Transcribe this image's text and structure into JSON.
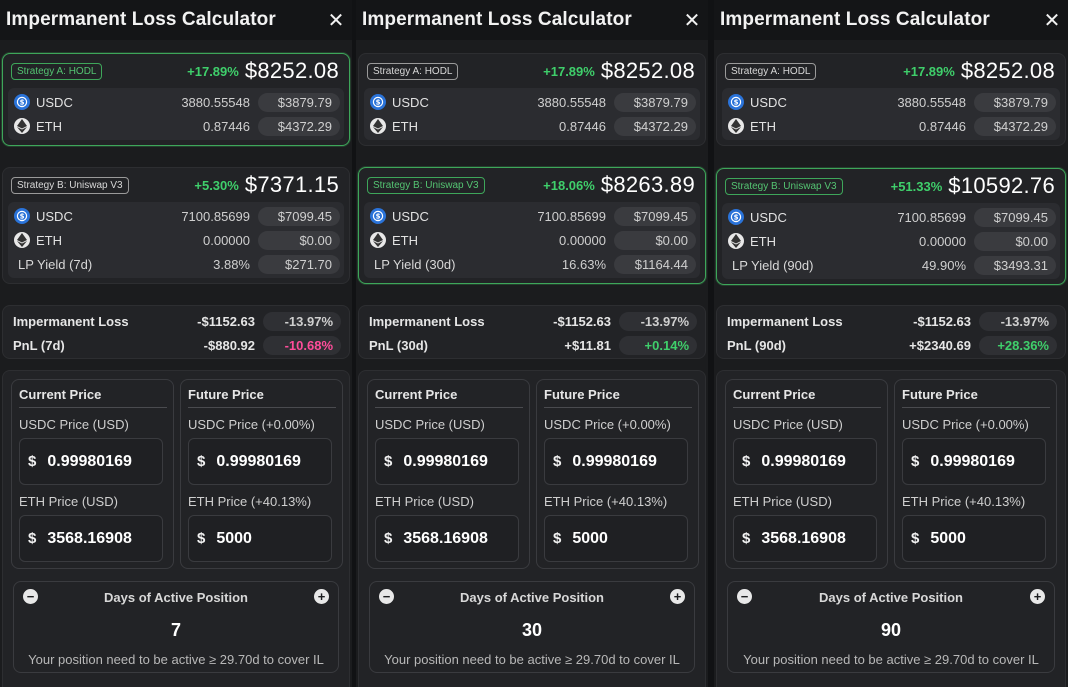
{
  "panels": [
    {
      "title": "Impermanent Loss Calculator",
      "strategy_a": {
        "badge": "Strategy A: HODL",
        "pct": "+17.89%",
        "total": "$8252.08",
        "rows": [
          {
            "token": "USDC",
            "amount": "3880.55548",
            "value": "$3879.79"
          },
          {
            "token": "ETH",
            "amount": "0.87446",
            "value": "$4372.29"
          }
        ]
      },
      "strategy_b": {
        "badge": "Strategy B: Uniswap V3",
        "pct": "+5.30%",
        "total": "$7371.15",
        "rows": [
          {
            "token": "USDC",
            "amount": "7100.85699",
            "value": "$7099.45"
          },
          {
            "token": "ETH",
            "amount": "0.00000",
            "value": "$0.00"
          }
        ],
        "lp_label": "LP Yield (7d)",
        "lp_pct": "3.88%",
        "lp_value": "$271.70"
      },
      "il": {
        "label": "Impermanent Loss",
        "value": "-$1152.63",
        "pct": "-13.97%"
      },
      "pnl": {
        "label": "PnL (7d)",
        "value": "-$880.92",
        "pct": "-10.68%",
        "tone": "neg"
      },
      "current": {
        "title": "Current Price",
        "usdc_label": "USDC Price (USD)",
        "usdc": "0.99980169",
        "eth_label": "ETH Price (USD)",
        "eth": "3568.16908"
      },
      "future": {
        "title": "Future Price",
        "usdc_label": "USDC Price (+0.00%)",
        "usdc": "0.99980169",
        "eth_label": "ETH Price (+40.13%)",
        "eth": "5000"
      },
      "days": {
        "title": "Days of Active Position",
        "value": "7",
        "note": "Your position need to be active ≥ 29.70d to cover IL"
      },
      "currency": "$"
    },
    {
      "title": "Impermanent Loss Calculator",
      "strategy_a": {
        "badge": "Strategy A: HODL",
        "pct": "+17.89%",
        "total": "$8252.08",
        "rows": [
          {
            "token": "USDC",
            "amount": "3880.55548",
            "value": "$3879.79"
          },
          {
            "token": "ETH",
            "amount": "0.87446",
            "value": "$4372.29"
          }
        ]
      },
      "strategy_b": {
        "badge": "Strategy B: Uniswap V3",
        "pct": "+18.06%",
        "total": "$8263.89",
        "rows": [
          {
            "token": "USDC",
            "amount": "7100.85699",
            "value": "$7099.45"
          },
          {
            "token": "ETH",
            "amount": "0.00000",
            "value": "$0.00"
          }
        ],
        "lp_label": "LP Yield (30d)",
        "lp_pct": "16.63%",
        "lp_value": "$1164.44"
      },
      "il": {
        "label": "Impermanent Loss",
        "value": "-$1152.63",
        "pct": "-13.97%"
      },
      "pnl": {
        "label": "PnL (30d)",
        "value": "+$11.81",
        "pct": "+0.14%",
        "tone": "pos"
      },
      "current": {
        "title": "Current Price",
        "usdc_label": "USDC Price (USD)",
        "usdc": "0.99980169",
        "eth_label": "ETH Price (USD)",
        "eth": "3568.16908"
      },
      "future": {
        "title": "Future Price",
        "usdc_label": "USDC Price (+0.00%)",
        "usdc": "0.99980169",
        "eth_label": "ETH Price (+40.13%)",
        "eth": "5000"
      },
      "days": {
        "title": "Days of Active Position",
        "value": "30",
        "note": "Your position need to be active ≥ 29.70d to cover IL"
      },
      "currency": "$"
    },
    {
      "title": "Impermanent Loss Calculator",
      "strategy_a": {
        "badge": "Strategy A: HODL",
        "pct": "+17.89%",
        "total": "$8252.08",
        "rows": [
          {
            "token": "USDC",
            "amount": "3880.55548",
            "value": "$3879.79"
          },
          {
            "token": "ETH",
            "amount": "0.87446",
            "value": "$4372.29"
          }
        ]
      },
      "strategy_b": {
        "badge": "Strategy B: Uniswap V3",
        "pct": "+51.33%",
        "total": "$10592.76",
        "rows": [
          {
            "token": "USDC",
            "amount": "7100.85699",
            "value": "$7099.45"
          },
          {
            "token": "ETH",
            "amount": "0.00000",
            "value": "$0.00"
          }
        ],
        "lp_label": "LP Yield (90d)",
        "lp_pct": "49.90%",
        "lp_value": "$3493.31"
      },
      "il": {
        "label": "Impermanent Loss",
        "value": "-$1152.63",
        "pct": "-13.97%"
      },
      "pnl": {
        "label": "PnL (90d)",
        "value": "+$2340.69",
        "pct": "+28.36%",
        "tone": "pos"
      },
      "current": {
        "title": "Current Price",
        "usdc_label": "USDC Price (USD)",
        "usdc": "0.99980169",
        "eth_label": "ETH Price (USD)",
        "eth": "3568.16908"
      },
      "future": {
        "title": "Future Price",
        "usdc_label": "USDC Price (+0.00%)",
        "usdc": "0.99980169",
        "eth_label": "ETH Price (+40.13%)",
        "eth": "5000"
      },
      "days": {
        "title": "Days of Active Position",
        "value": "90",
        "note": "Your position need to be active ≥ 29.70d to cover IL"
      },
      "currency": "$"
    }
  ],
  "ui": {
    "close_glyph": "✕",
    "minus_glyph": "−",
    "plus_glyph": "+"
  },
  "colors": {
    "accent_green": "#3fcf6b",
    "negative_pink": "#ff4d9a",
    "usdc_blue": "#2a73d9"
  }
}
